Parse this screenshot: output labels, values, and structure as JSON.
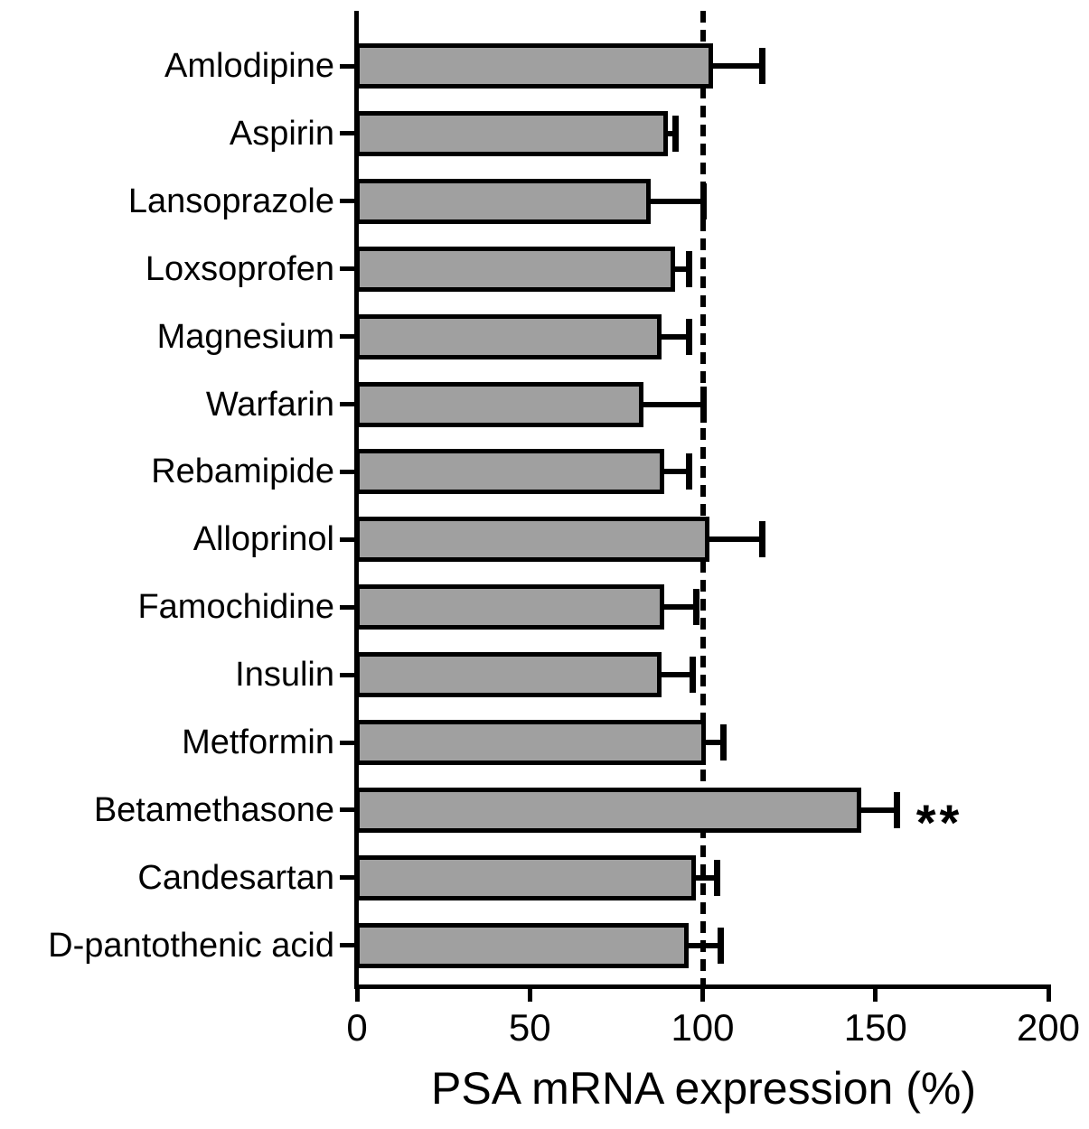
{
  "chart_data": {
    "type": "bar",
    "orientation": "horizontal",
    "title": "",
    "xlabel": "PSA mRNA expression (%)",
    "ylabel": "",
    "xlim": [
      0,
      200
    ],
    "xticks": [
      "0",
      "50",
      "100",
      "150",
      "200"
    ],
    "xtick_values": [
      0,
      50,
      100,
      150,
      200
    ],
    "reference_line_x": 100,
    "grid": false,
    "legend": false,
    "bar_fill_color": "#a0a0a0",
    "bar_border_color": "#000000",
    "categories": [
      "Amlodipine",
      "Aspirin",
      "Lansoprazole",
      "Loxsoprofen",
      "Magnesium",
      "Warfarin",
      "Rebamipide",
      "Alloprinol",
      "Famochidine",
      "Insulin",
      "Metformin",
      "Betamethasone",
      "Candesartan",
      "D-pantothenic acid"
    ],
    "values": [
      103,
      90,
      85,
      92,
      88,
      83,
      89,
      102,
      89,
      88,
      101,
      146,
      98,
      96
    ],
    "errors_plus": [
      14,
      2,
      15,
      4,
      8,
      17,
      7,
      15,
      9,
      9,
      5,
      10,
      6,
      9
    ],
    "significance": [
      "",
      "",
      "",
      "",
      "",
      "",
      "",
      "",
      "",
      "",
      "",
      "**",
      "",
      ""
    ]
  }
}
